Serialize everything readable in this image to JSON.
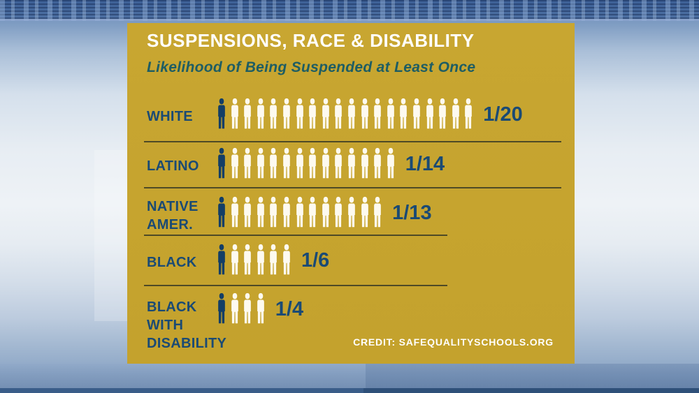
{
  "panel": {
    "background_color": "#c6a42f"
  },
  "colors": {
    "panel_gold": "#c6a42f",
    "text_navy": "#1a4a74",
    "subtitle_teal": "#1e5d63",
    "icon_highlight_navy": "#133e66",
    "icon_white": "#fdfaf0",
    "divider_dark": "#4e4a26",
    "credit_white": "#ffffff"
  },
  "chart_data": {
    "type": "bar",
    "style": "pictogram",
    "title": "SUSPENSIONS, RACE & DISABILITY",
    "subtitle": "Likelihood of Being Suspended at Least Once",
    "credit": "CREDIT: SAFEQUALITYSCHOOLS.ORG",
    "legend_position": "none",
    "highlighted_per_row": 1,
    "colors": {
      "highlight": "#133e66",
      "others": "#fdfaf0"
    },
    "categories": [
      "WHITE",
      "LATINO",
      "NATIVE AMER.",
      "BLACK",
      "BLACK WITH DISABILITY"
    ],
    "values": [
      20,
      14,
      13,
      6,
      4
    ],
    "rows": [
      {
        "category": "WHITE",
        "label_lines": [
          "WHITE"
        ],
        "count": 20,
        "fraction": "1/20"
      },
      {
        "category": "LATINO",
        "label_lines": [
          "LATINO"
        ],
        "count": 14,
        "fraction": "1/14"
      },
      {
        "category": "NATIVE AMER.",
        "label_lines": [
          "NATIVE",
          "AMER."
        ],
        "count": 13,
        "fraction": "1/13"
      },
      {
        "category": "BLACK",
        "label_lines": [
          "BLACK"
        ],
        "count": 6,
        "fraction": "1/6"
      },
      {
        "category": "BLACK WITH DISABILITY",
        "label_lines": [
          "BLACK",
          "WITH",
          "DISABILITY"
        ],
        "count": 4,
        "fraction": "1/4"
      }
    ]
  }
}
